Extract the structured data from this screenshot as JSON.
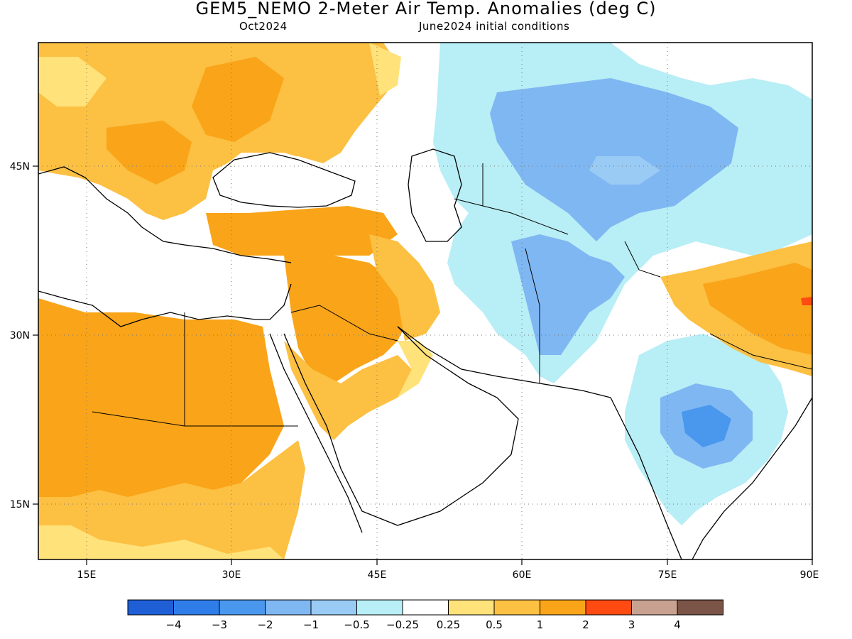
{
  "header": {
    "title": "GEM5_NEMO 2-Meter Air Temp. Anomalies (deg C)",
    "valid_month": "Oct2024",
    "init_label": "June2024 initial conditions"
  },
  "map": {
    "lon_range": [
      10,
      90
    ],
    "lat_range": [
      10,
      55
    ],
    "x_ticks": [
      {
        "value": 15,
        "label": "15E"
      },
      {
        "value": 30,
        "label": "30E"
      },
      {
        "value": 45,
        "label": "45E"
      },
      {
        "value": 60,
        "label": "60E"
      },
      {
        "value": 75,
        "label": "75E"
      },
      {
        "value": 90,
        "label": "90E"
      }
    ],
    "y_ticks": [
      {
        "value": 45,
        "label": "45N"
      },
      {
        "value": 30,
        "label": "30N"
      },
      {
        "value": 15,
        "label": "15N"
      }
    ],
    "gridlines": "dotted"
  },
  "colorbar": {
    "colors": [
      "#1f5fd6",
      "#2e7de8",
      "#4a97ee",
      "#7fb7f2",
      "#99cbf5",
      "#b8eef5",
      "#ffffff",
      "#ffe27a",
      "#fcc042",
      "#f9a419",
      "#ff4a12",
      "#c8a191",
      "#7a5446"
    ],
    "labels": [
      "-4",
      "-3",
      "-2",
      "-1",
      "-0.5",
      "-0.25",
      "0.25",
      "0.5",
      "1",
      "2",
      "3",
      "4"
    ]
  }
}
